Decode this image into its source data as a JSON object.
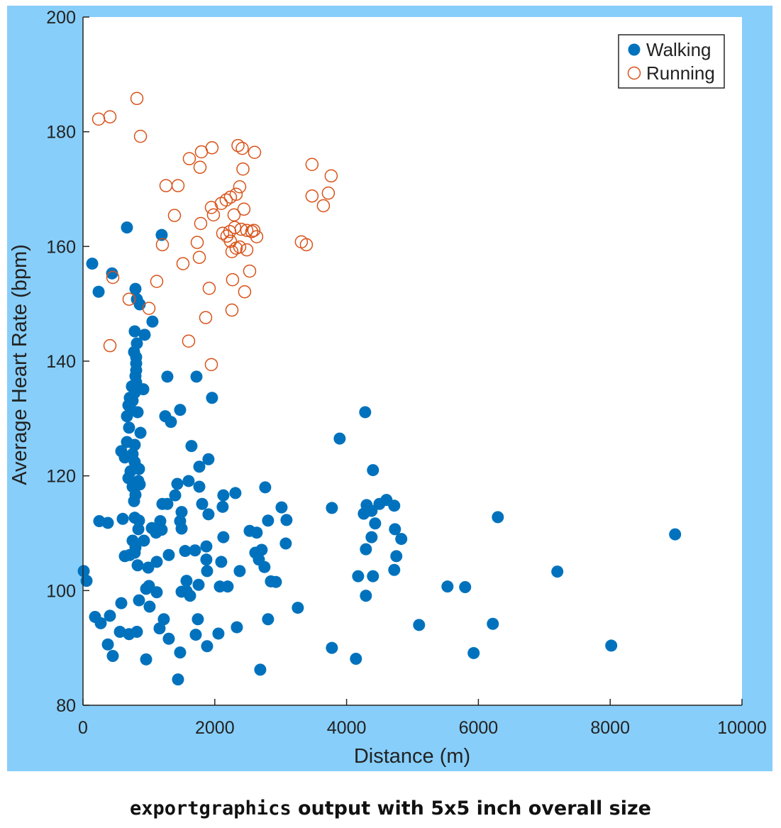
{
  "colors": {
    "figure_bg": "#87CEFA",
    "walking": "#0072BD",
    "running": "#D95319",
    "axes_bg": "#FFFFFF"
  },
  "caption": {
    "code": "exportgraphics",
    "rest": " output with 5x5 inch overall size"
  },
  "chart_data": {
    "type": "scatter",
    "title": "",
    "xlabel": "Distance (m)",
    "ylabel": "Average Heart Rate (bpm)",
    "xlim": [
      0,
      10000
    ],
    "ylim": [
      80,
      200
    ],
    "xticks": [
      0,
      2000,
      4000,
      6000,
      8000,
      10000
    ],
    "yticks": [
      80,
      100,
      120,
      140,
      160,
      180,
      200
    ],
    "grid": false,
    "legend": {
      "placement": "top-right",
      "entries": [
        "Walking",
        "Running"
      ]
    },
    "series": [
      {
        "name": "Walking",
        "marker": "filled-circle",
        "points": [
          [
            140,
            157.0
          ],
          [
            237,
            152.1
          ],
          [
            441,
            155.3
          ],
          [
            667,
            163.3
          ],
          [
            1194,
            162.0
          ],
          [
            796,
            152.6
          ],
          [
            818,
            150.8
          ],
          [
            861,
            149.9
          ],
          [
            1054,
            146.9
          ],
          [
            785,
            145.2
          ],
          [
            936,
            144.6
          ],
          [
            818,
            143.1
          ],
          [
            775,
            141.6
          ],
          [
            807,
            140.7
          ],
          [
            807,
            139.6
          ],
          [
            807,
            138.4
          ],
          [
            796,
            137.4
          ],
          [
            1280,
            137.3
          ],
          [
            1722,
            137.3
          ],
          [
            807,
            136.3
          ],
          [
            742,
            135.6
          ],
          [
            915,
            135.1
          ],
          [
            785,
            134.5
          ],
          [
            710,
            133.6
          ],
          [
            753,
            133.1
          ],
          [
            1958,
            133.6
          ],
          [
            689,
            132.3
          ],
          [
            731,
            131.5
          ],
          [
            829,
            131.1
          ],
          [
            667,
            130.4
          ],
          [
            1248,
            130.4
          ],
          [
            1474,
            131.5
          ],
          [
            1334,
            129.4
          ],
          [
            4282,
            131.1
          ],
          [
            699,
            128.4
          ],
          [
            872,
            127.5
          ],
          [
            3895,
            126.5
          ],
          [
            667,
            125.9
          ],
          [
            785,
            125.4
          ],
          [
            1646,
            125.2
          ],
          [
            581,
            124.3
          ],
          [
            753,
            123.8
          ],
          [
            635,
            123.2
          ],
          [
            785,
            122.4
          ],
          [
            1904,
            122.9
          ],
          [
            1765,
            121.6
          ],
          [
            721,
            120.8
          ],
          [
            850,
            121.2
          ],
          [
            4400,
            121.0
          ],
          [
            689,
            119.6
          ],
          [
            840,
            119.1
          ],
          [
            1603,
            119.1
          ],
          [
            753,
            118.1
          ],
          [
            861,
            118.5
          ],
          [
            1765,
            118.1
          ],
          [
            2765,
            118.0
          ],
          [
            1431,
            118.6
          ],
          [
            796,
            116.7
          ],
          [
            2130,
            116.6
          ],
          [
            2313,
            117.0
          ],
          [
            1399,
            116.6
          ],
          [
            775,
            115.6
          ],
          [
            1205,
            115.1
          ],
          [
            1280,
            115.1
          ],
          [
            1808,
            115.1
          ],
          [
            2119,
            114.6
          ],
          [
            1496,
            113.7
          ],
          [
            1904,
            113.3
          ],
          [
            3013,
            114.5
          ],
          [
            3777,
            114.4
          ],
          [
            4304,
            114.9
          ],
          [
            4379,
            113.9
          ],
          [
            4261,
            113.4
          ],
          [
            4498,
            115.1
          ],
          [
            4605,
            115.8
          ],
          [
            4723,
            114.8
          ],
          [
            603,
            112.5
          ],
          [
            785,
            112.7
          ],
          [
            850,
            112.2
          ],
          [
            247,
            112.1
          ],
          [
            377,
            111.8
          ],
          [
            1173,
            112.1
          ],
          [
            1474,
            112.1
          ],
          [
            3088,
            112.3
          ],
          [
            2808,
            112.2
          ],
          [
            4433,
            111.7
          ],
          [
            6295,
            112.8
          ],
          [
            840,
            110.7
          ],
          [
            1044,
            110.9
          ],
          [
            1108,
            110.1
          ],
          [
            1194,
            110.6
          ],
          [
            1496,
            110.8
          ],
          [
            2529,
            110.4
          ],
          [
            2636,
            110.1
          ],
          [
            4734,
            110.7
          ],
          [
            8985,
            109.8
          ],
          [
            2130,
            109.3
          ],
          [
            4379,
            109.3
          ],
          [
            753,
            108.7
          ],
          [
            925,
            108.7
          ],
          [
            4830,
            109.0
          ],
          [
            3077,
            108.2
          ],
          [
            796,
            107.5
          ],
          [
            1872,
            107.7
          ],
          [
            4293,
            107.2
          ],
          [
            1550,
            106.9
          ],
          [
            1700,
            107.0
          ],
          [
            2711,
            107.1
          ],
          [
            2615,
            106.6
          ],
          [
            635,
            106.0
          ],
          [
            710,
            106.2
          ],
          [
            785,
            106.6
          ],
          [
            1302,
            106.2
          ],
          [
            4755,
            106.0
          ],
          [
            2669,
            105.4
          ],
          [
            1872,
            105.4
          ],
          [
            2098,
            105.0
          ],
          [
            1119,
            105.0
          ],
          [
            829,
            104.4
          ],
          [
            2754,
            104.1
          ],
          [
            990,
            104.0
          ],
          [
            4723,
            103.6
          ],
          [
            2378,
            103.4
          ],
          [
            1883,
            103.4
          ],
          [
            11,
            103.4
          ],
          [
            7198,
            103.3
          ],
          [
            54,
            101.7
          ],
          [
            4175,
            102.5
          ],
          [
            4400,
            102.5
          ],
          [
            1571,
            101.7
          ],
          [
            2851,
            101.6
          ],
          [
            2927,
            101.5
          ],
          [
            1754,
            101.0
          ],
          [
            2077,
            100.7
          ],
          [
            2195,
            100.7
          ],
          [
            1001,
            100.8
          ],
          [
            958,
            100.3
          ],
          [
            1119,
            99.7
          ],
          [
            1496,
            99.8
          ],
          [
            1571,
            99.9
          ],
          [
            1625,
            99.1
          ],
          [
            5531,
            100.7
          ],
          [
            5799,
            100.6
          ],
          [
            4293,
            99.1
          ],
          [
            581,
            97.8
          ],
          [
            1011,
            97.2
          ],
          [
            850,
            98.3
          ],
          [
            3260,
            97.0
          ],
          [
            183,
            95.4
          ],
          [
            409,
            95.6
          ],
          [
            1226,
            95.0
          ],
          [
            1743,
            95.0
          ],
          [
            2808,
            95.0
          ],
          [
            269,
            94.3
          ],
          [
            5100,
            94.0
          ],
          [
            6219,
            94.2
          ],
          [
            2335,
            93.6
          ],
          [
            1162,
            93.4
          ],
          [
            560,
            92.8
          ],
          [
            699,
            92.4
          ],
          [
            818,
            92.8
          ],
          [
            1711,
            92.3
          ],
          [
            2055,
            92.5
          ],
          [
            1302,
            91.6
          ],
          [
            377,
            90.6
          ],
          [
            1883,
            90.3
          ],
          [
            3777,
            90.0
          ],
          [
            8016,
            90.4
          ],
          [
            452,
            88.6
          ],
          [
            1474,
            89.2
          ],
          [
            5928,
            89.1
          ],
          [
            958,
            88.0
          ],
          [
            4142,
            88.1
          ],
          [
            2690,
            86.2
          ],
          [
            1442,
            84.5
          ]
        ]
      },
      {
        "name": "Running",
        "marker": "open-circle",
        "points": [
          [
            237,
            182.2
          ],
          [
            409,
            182.6
          ],
          [
            818,
            185.8
          ],
          [
            872,
            179.2
          ],
          [
            1614,
            175.3
          ],
          [
            1797,
            176.5
          ],
          [
            1958,
            177.2
          ],
          [
            1776,
            173.8
          ],
          [
            2352,
            177.6
          ],
          [
            2416,
            177.1
          ],
          [
            2604,
            176.4
          ],
          [
            2427,
            173.5
          ],
          [
            1259,
            170.6
          ],
          [
            1442,
            170.6
          ],
          [
            1388,
            165.4
          ],
          [
            1948,
            166.8
          ],
          [
            1980,
            165.5
          ],
          [
            2098,
            167.5
          ],
          [
            2173,
            168.1
          ],
          [
            2238,
            168.6
          ],
          [
            2324,
            169.1
          ],
          [
            2378,
            170.4
          ],
          [
            2442,
            166.5
          ],
          [
            2292,
            165.5
          ],
          [
            1786,
            164.0
          ],
          [
            1205,
            160.3
          ],
          [
            1733,
            160.7
          ],
          [
            1765,
            158.1
          ],
          [
            1517,
            157.0
          ],
          [
            2120,
            162.3
          ],
          [
            2184,
            161.8
          ],
          [
            2227,
            162.6
          ],
          [
            2302,
            163.3
          ],
          [
            2399,
            163.0
          ],
          [
            2486,
            162.8
          ],
          [
            2561,
            162.6
          ],
          [
            2593,
            162.8
          ],
          [
            2636,
            161.7
          ],
          [
            2238,
            160.9
          ],
          [
            2260,
            159.1
          ],
          [
            2324,
            159.7
          ],
          [
            2378,
            159.9
          ],
          [
            2486,
            159.4
          ],
          [
            2529,
            155.7
          ],
          [
            2270,
            154.2
          ],
          [
            2453,
            152.1
          ],
          [
            1915,
            152.7
          ],
          [
            2260,
            148.9
          ],
          [
            1862,
            147.6
          ],
          [
            452,
            154.6
          ],
          [
            1119,
            153.9
          ],
          [
            699,
            150.8
          ],
          [
            1001,
            149.2
          ],
          [
            409,
            142.7
          ],
          [
            1603,
            143.5
          ],
          [
            1948,
            139.4
          ],
          [
            3475,
            174.3
          ],
          [
            3766,
            172.3
          ],
          [
            3475,
            168.8
          ],
          [
            3723,
            169.3
          ],
          [
            3648,
            167.1
          ],
          [
            3314,
            160.8
          ],
          [
            3390,
            160.3
          ]
        ]
      }
    ]
  }
}
